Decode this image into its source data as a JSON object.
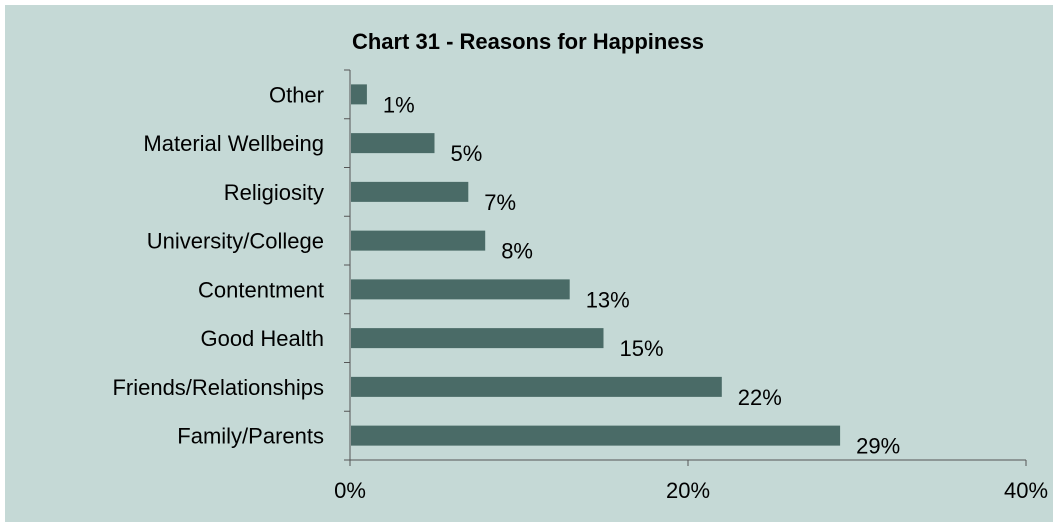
{
  "chart_data": {
    "type": "bar",
    "orientation": "horizontal",
    "title": "Chart 31 - Reasons for Happiness",
    "xlabel": "",
    "ylabel": "",
    "categories": [
      "Other",
      "Material Wellbeing",
      "Religiosity",
      "University/College",
      "Contentment",
      "Good Health",
      "Friends/Relationships",
      "Family/Parents"
    ],
    "values": [
      1,
      5,
      7,
      8,
      13,
      15,
      22,
      29
    ],
    "data_labels": [
      "1%",
      "5%",
      "7%",
      "8%",
      "13%",
      "15%",
      "22%",
      "29%"
    ],
    "xlim": [
      0,
      40
    ],
    "xticks": [
      0,
      20,
      40
    ],
    "xtick_labels": [
      "0%",
      "20%",
      "40%"
    ],
    "grid": false,
    "legend": "none",
    "colors": {
      "background": "#c5d9d6",
      "bar": "#4a6b67",
      "axis": "#555555",
      "border": "#ffffff"
    }
  }
}
